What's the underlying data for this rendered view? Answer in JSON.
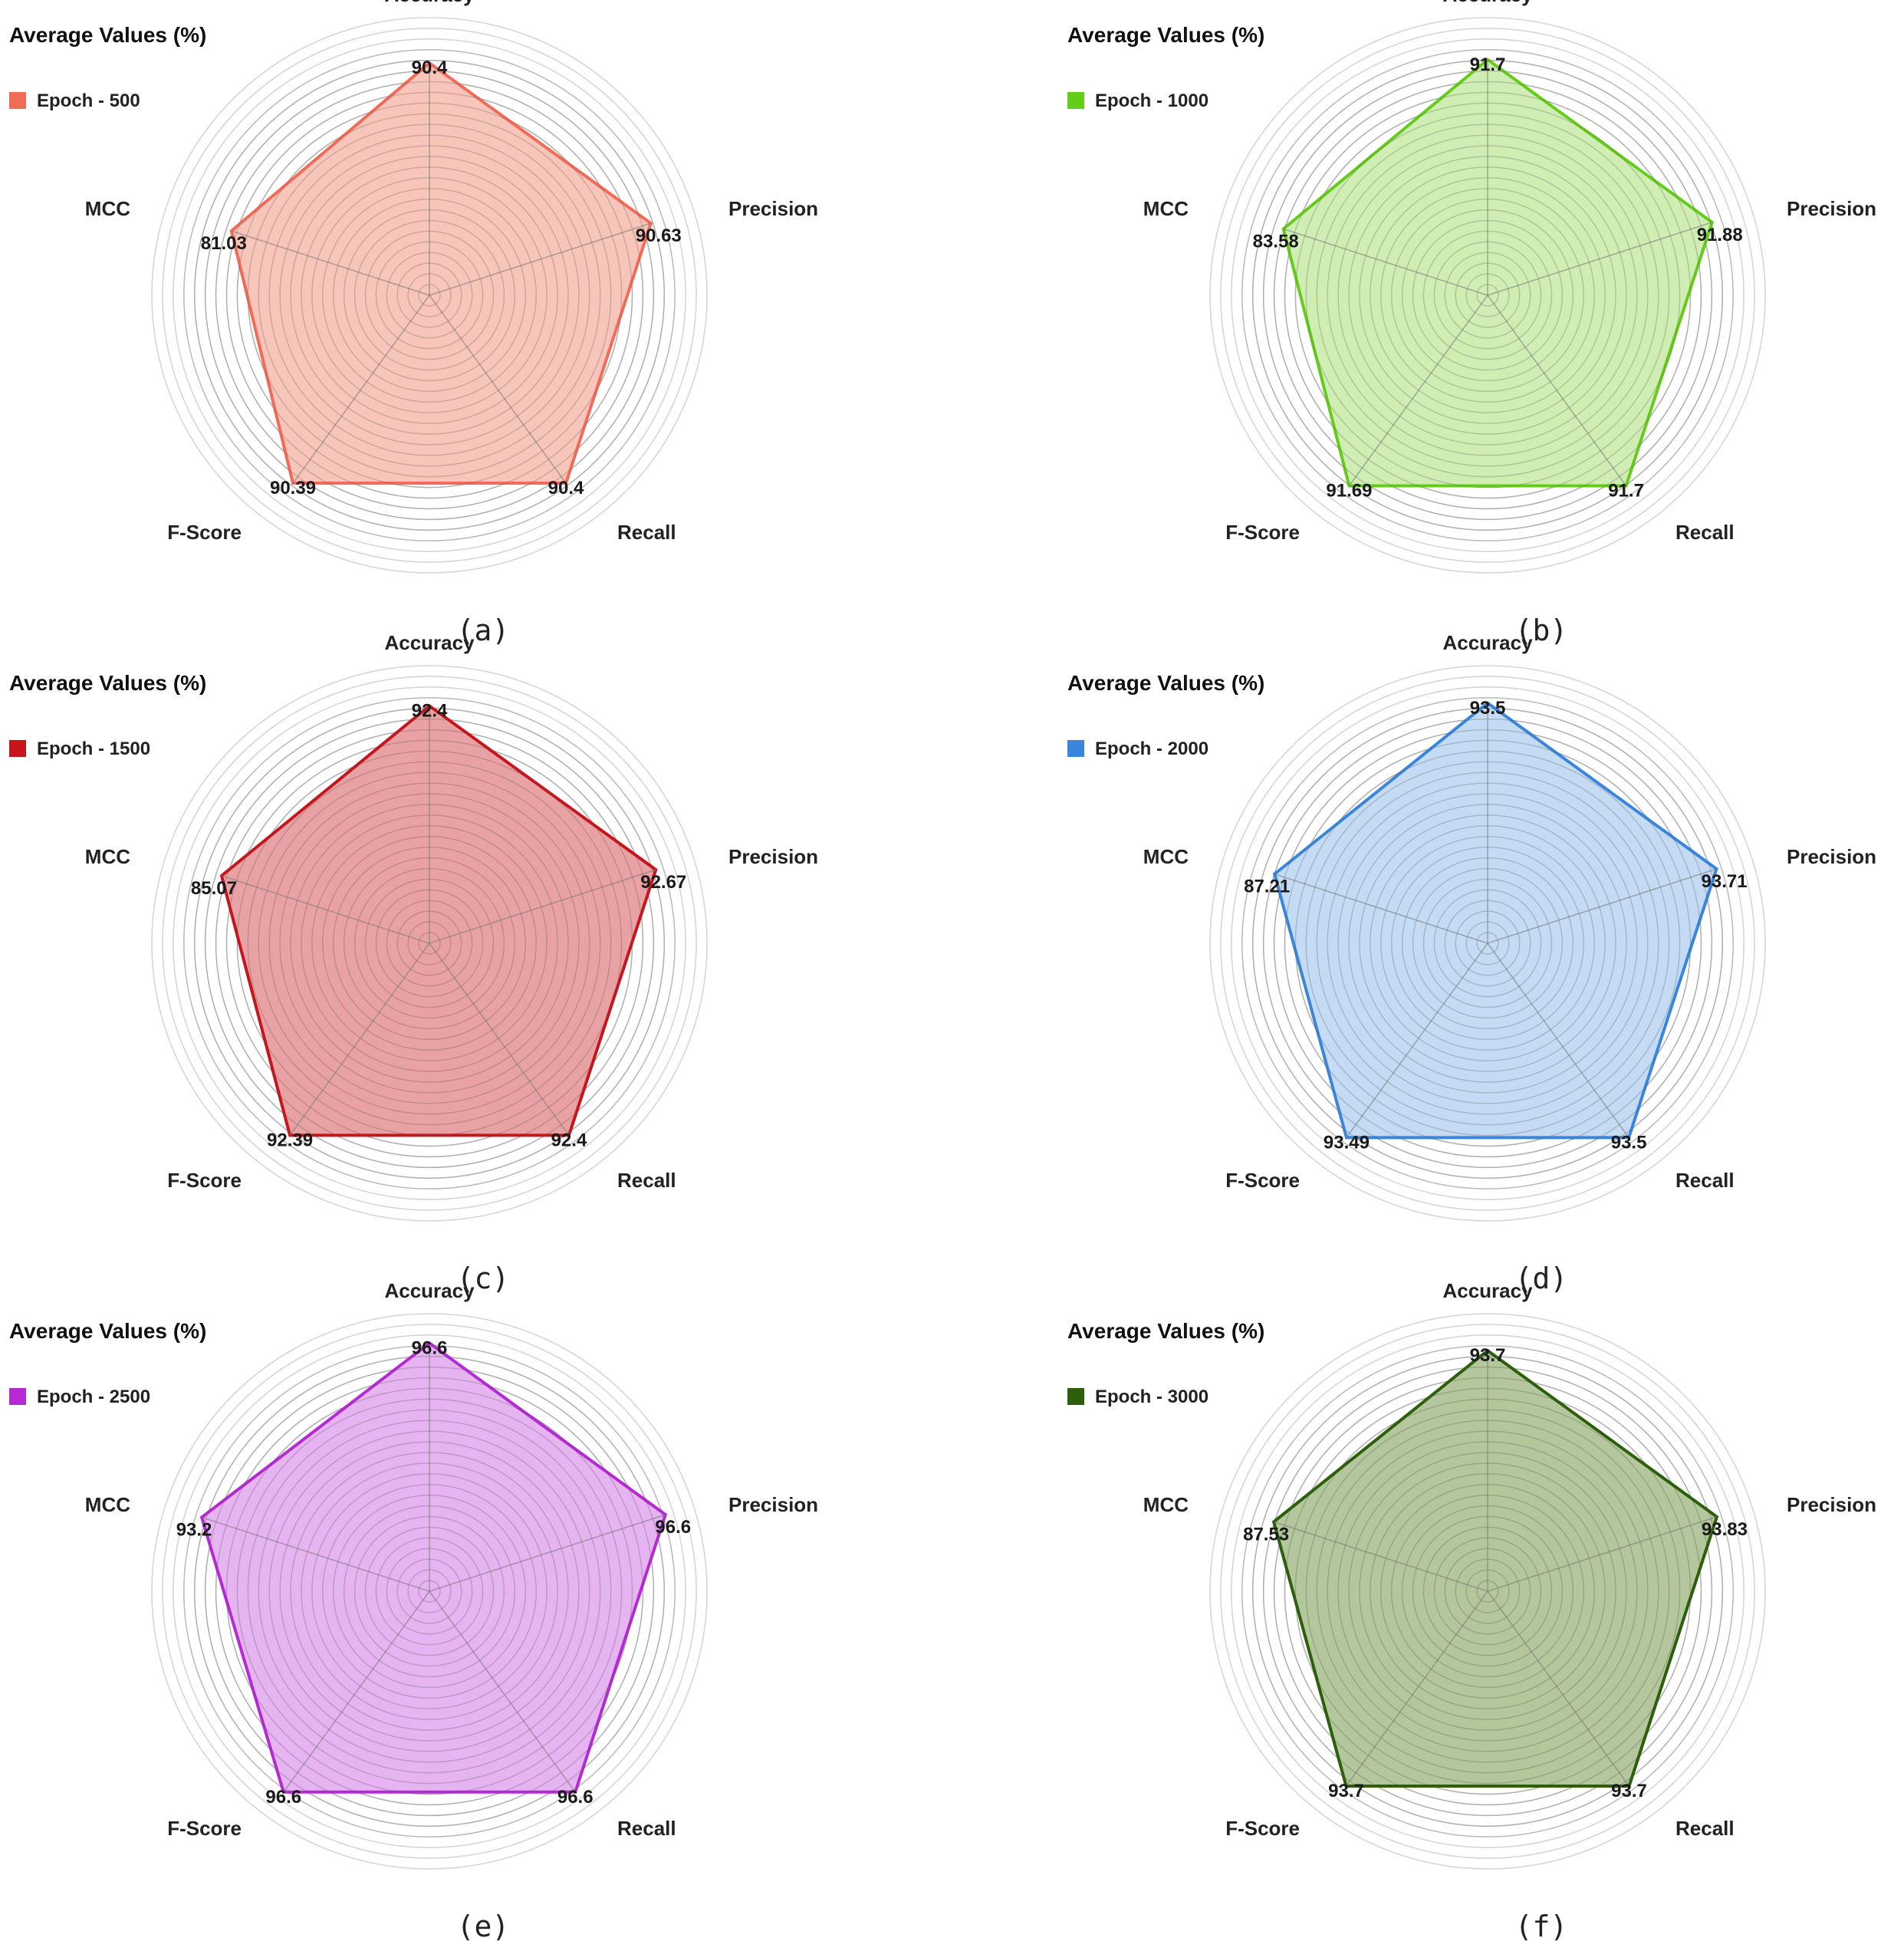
{
  "chart_data": [
    {
      "type": "radar",
      "panel_label": "(a)",
      "title": "Average Values (%)",
      "axes": [
        "Accuracy",
        "Precision",
        "Recall",
        "F-Score",
        "MCC"
      ],
      "series": [
        {
          "name": "Epoch - 500",
          "color": "#f26b57",
          "fill": "#f7b8ab",
          "values": [
            90.4,
            90.63,
            90.4,
            90.39,
            81.03
          ],
          "labels": [
            "90.4",
            "90.63",
            "90.4",
            "90.39",
            "81.03"
          ]
        }
      ]
    },
    {
      "type": "radar",
      "panel_label": "(b)",
      "title": "Average Values (%)",
      "axes": [
        "Accuracy",
        "Precision",
        "Recall",
        "F-Score",
        "MCC"
      ],
      "series": [
        {
          "name": "Epoch - 1000",
          "color": "#66cc1a",
          "fill": "#c6e9a4",
          "values": [
            91.7,
            91.88,
            91.7,
            91.69,
            83.58
          ],
          "labels": [
            "91.7",
            "91.88",
            "91.7",
            "91.69",
            "83.58"
          ]
        }
      ]
    },
    {
      "type": "radar",
      "panel_label": "(c)",
      "title": "Average Values (%)",
      "axes": [
        "Accuracy",
        "Precision",
        "Recall",
        "F-Score",
        "MCC"
      ],
      "series": [
        {
          "name": "Epoch - 1500",
          "color": "#c8151d",
          "fill": "#e48d8f",
          "values": [
            92.4,
            92.67,
            92.4,
            92.39,
            85.07
          ],
          "labels": [
            "92.4",
            "92.67",
            "92.4",
            "92.39",
            "85.07"
          ]
        }
      ]
    },
    {
      "type": "radar",
      "panel_label": "(d)",
      "title": "Average Values (%)",
      "axes": [
        "Accuracy",
        "Precision",
        "Recall",
        "F-Score",
        "MCC"
      ],
      "series": [
        {
          "name": "Epoch - 2000",
          "color": "#3a86dc",
          "fill": "#b7d3f0",
          "values": [
            93.5,
            93.71,
            93.5,
            93.49,
            87.21
          ],
          "labels": [
            "93.5",
            "93.71",
            "93.5",
            "93.49",
            "87.21"
          ]
        }
      ]
    },
    {
      "type": "radar",
      "panel_label": "(e)",
      "title": "Average Values (%)",
      "axes": [
        "Accuracy",
        "Precision",
        "Recall",
        "F-Score",
        "MCC"
      ],
      "series": [
        {
          "name": "Epoch - 2500",
          "color": "#b52ad4",
          "fill": "#e0a4ee",
          "values": [
            96.6,
            96.6,
            96.6,
            96.6,
            93.2
          ],
          "labels": [
            "96.6",
            "96.6",
            "96.6",
            "96.6",
            "93.2"
          ]
        }
      ]
    },
    {
      "type": "radar",
      "panel_label": "(f)",
      "title": "Average Values (%)",
      "axes": [
        "Accuracy",
        "Precision",
        "Recall",
        "F-Score",
        "MCC"
      ],
      "series": [
        {
          "name": "Epoch - 3000",
          "color": "#2b5f0a",
          "fill": "#a3ba86",
          "values": [
            93.7,
            93.83,
            93.7,
            93.7,
            87.53
          ],
          "labels": [
            "93.7",
            "93.83",
            "93.7",
            "93.7",
            "87.53"
          ]
        }
      ]
    }
  ]
}
